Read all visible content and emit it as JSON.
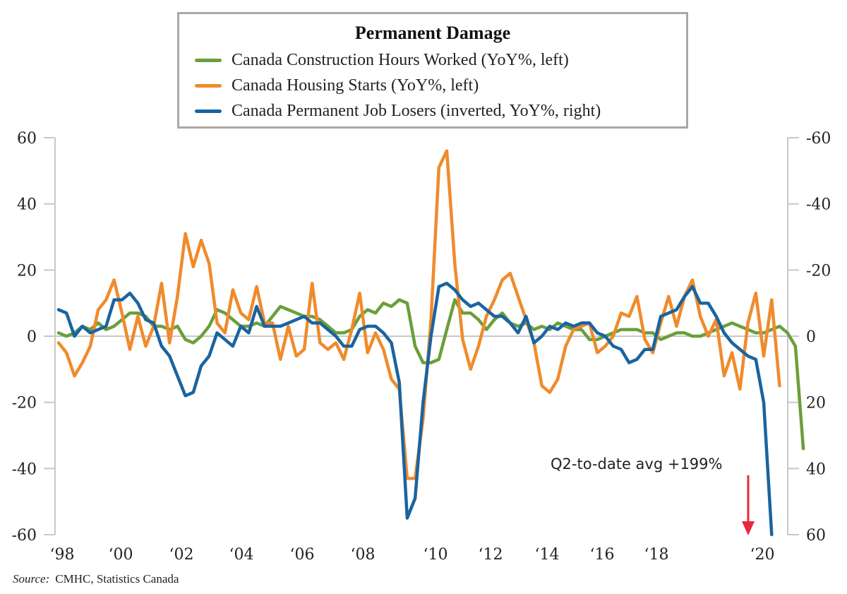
{
  "chart_data": {
    "type": "line",
    "title": "Permanent Damage",
    "xlabel": "",
    "ylabel_left": "",
    "ylabel_right": "",
    "x_start": 1998.0,
    "x_step": 0.25,
    "x_range": [
      1998.0,
      2020.45
    ],
    "x_ticks": [
      {
        "year": 1998,
        "label": "‘98"
      },
      {
        "year": 2000,
        "label": "‘00"
      },
      {
        "year": 2002,
        "label": "‘02"
      },
      {
        "year": 2004,
        "label": "‘04"
      },
      {
        "year": 2006,
        "label": "‘06"
      },
      {
        "year": 2008,
        "label": "‘08"
      },
      {
        "year": 2010,
        "label": "‘10"
      },
      {
        "year": 2012,
        "label": "‘12"
      },
      {
        "year": 2014,
        "label": "‘14"
      },
      {
        "year": 2016,
        "label": "‘16"
      },
      {
        "year": 2018,
        "label": "‘18"
      },
      {
        "year": 2020,
        "label": "‘20"
      }
    ],
    "y_left": {
      "range": [
        -60,
        60
      ],
      "ticks": [
        60,
        40,
        20,
        0,
        -20,
        -40,
        -60
      ]
    },
    "y_right": {
      "range": [
        60,
        -60
      ],
      "inverted": true,
      "ticks": [
        -60,
        -40,
        -20,
        0,
        20,
        40,
        60
      ]
    },
    "grid": "zero-line only",
    "legend_position": "top-center",
    "series": [
      {
        "name": "Canada Construction Hours Worked (YoY%, left)",
        "axis": "left",
        "color": "#6a9f3a",
        "values": [
          1,
          0,
          1,
          3,
          2,
          4,
          2,
          3,
          5,
          7,
          7,
          6,
          3,
          3,
          2,
          3,
          -1,
          -2,
          0,
          3,
          8,
          7,
          5,
          3,
          3,
          4,
          3,
          6,
          9,
          8,
          7,
          6,
          6,
          5,
          3,
          1,
          1,
          2,
          6,
          8,
          7,
          10,
          9,
          11,
          10,
          -3,
          -8,
          -8,
          -7,
          2,
          11,
          7,
          7,
          5,
          2,
          5,
          7,
          4,
          3,
          4,
          2,
          3,
          2,
          4,
          3,
          2,
          2,
          -1,
          -1,
          0,
          1,
          2,
          2,
          2,
          1,
          1,
          -1,
          0,
          1,
          1,
          0,
          0,
          1,
          2,
          3,
          4,
          3,
          2,
          1,
          1,
          2,
          3,
          1,
          -3,
          -34
        ],
        "end_value": -34
      },
      {
        "name": "Canada Housing Starts (YoY%, left)",
        "axis": "left",
        "color": "#ef8b2c",
        "values": [
          -2,
          -5,
          -12,
          -8,
          -3,
          8,
          11,
          17,
          7,
          -4,
          6,
          -3,
          3,
          16,
          -2,
          12,
          31,
          21,
          29,
          22,
          4,
          1,
          14,
          7,
          5,
          15,
          4,
          4,
          -7,
          3,
          -6,
          -4,
          16,
          -2,
          -4,
          -2,
          -7,
          2,
          13,
          -5,
          1,
          -4,
          -13,
          -16,
          -43,
          -43,
          -25,
          5,
          51,
          56,
          22,
          -1,
          -10,
          -3,
          6,
          11,
          17,
          19,
          12,
          5,
          -2,
          -15,
          -17,
          -13,
          -3,
          2,
          3,
          4,
          -5,
          -3,
          0,
          7,
          6,
          12,
          -1,
          -5,
          4,
          12,
          3,
          12,
          17,
          6,
          0,
          5,
          -12,
          -5,
          -16,
          4,
          13,
          -6,
          11,
          -15
        ]
      },
      {
        "name": "Canada Permanent Job Losers (inverted, YoY%, right)",
        "axis": "right",
        "color": "#1a64a0",
        "values": [
          -8,
          -7,
          0,
          -3,
          -1,
          -2,
          -3,
          -11,
          -11,
          -13,
          -10,
          -5,
          -4,
          3,
          6,
          12,
          18,
          17,
          9,
          6,
          -1,
          1,
          3,
          -3,
          -1,
          -9,
          -3,
          -3,
          -3,
          -4,
          -5,
          -6,
          -4,
          -4,
          -2,
          0,
          3,
          3,
          -2,
          -3,
          -3,
          -1,
          2,
          14,
          55,
          49,
          20,
          0,
          -15,
          -16,
          -14,
          -11,
          -9,
          -10,
          -8,
          -6,
          -6,
          -4,
          -1,
          -6,
          2,
          0,
          -3,
          -2,
          -4,
          -3,
          -4,
          -4,
          -1,
          0,
          3,
          4,
          8,
          7,
          4,
          4,
          -6,
          -7,
          -8,
          -12,
          -15,
          -10,
          -10,
          -6,
          -1,
          2,
          4,
          6,
          7,
          20,
          60
        ],
        "end_value_label": "Q2-to-date avg +199%"
      }
    ],
    "annotations": [
      {
        "text": "Q2-to-date avg +199%",
        "arrow": "down",
        "arrow_color": "#e8283a",
        "points_to": "Canada Permanent Job Losers off-scale"
      }
    ]
  },
  "legend": {
    "title": "Permanent Damage",
    "items": [
      {
        "label": "Canada Construction Hours Worked (YoY%, left)",
        "color": "#6a9f3a"
      },
      {
        "label": "Canada Housing Starts (YoY%, left)",
        "color": "#ef8b2c"
      },
      {
        "label": "Canada Permanent Job Losers (inverted, YoY%, right)",
        "color": "#1a64a0"
      }
    ]
  },
  "axes": {
    "left_labels": [
      "60",
      "40",
      "20",
      "0",
      "-20",
      "-40",
      "-60"
    ],
    "right_labels": [
      "-60",
      "-40",
      "-20",
      "0",
      "20",
      "40",
      "60"
    ],
    "x_labels": [
      "‘98",
      "‘00",
      "‘02",
      "‘04",
      "‘06",
      "‘08",
      "‘10",
      "‘12",
      "‘14",
      "‘16",
      "‘18",
      "‘20"
    ]
  },
  "annotation": {
    "text": "Q2-to-date avg +199%",
    "arrow_color": "#e8283a"
  },
  "source": {
    "prefix": "Source:",
    "text": "CMHC, Statistics Canada"
  },
  "colors": {
    "axis": "#c8c8c8",
    "legend_border": "#a8a8a8"
  }
}
